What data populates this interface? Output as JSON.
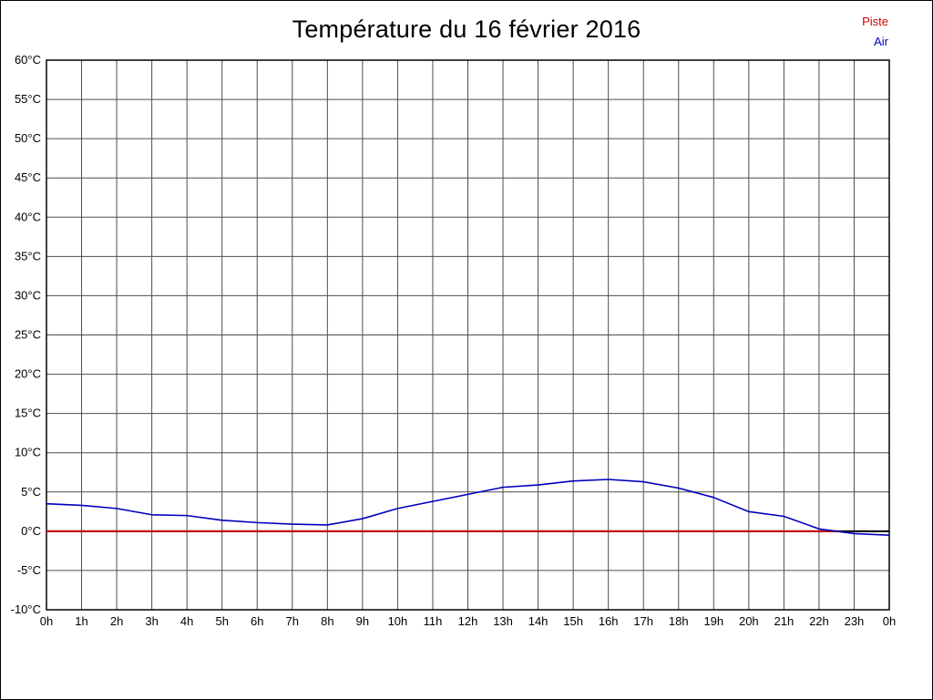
{
  "page": {
    "background": "#ffffff",
    "border_color": "#000000"
  },
  "title": "Température du 16 février 2016",
  "legend": {
    "items": [
      {
        "label": "Piste",
        "color": "#cc0000"
      },
      {
        "label": "Air",
        "color": "#0000bb"
      }
    ]
  },
  "chart_data": {
    "type": "line",
    "title": "Température du 16 février 2016",
    "x_labels": [
      "0h",
      "1h",
      "2h",
      "3h",
      "4h",
      "5h",
      "6h",
      "7h",
      "8h",
      "9h",
      "10h",
      "11h",
      "12h",
      "13h",
      "14h",
      "15h",
      "16h",
      "17h",
      "18h",
      "19h",
      "20h",
      "21h",
      "22h",
      "23h",
      "0h"
    ],
    "x_axis_unit": "hour",
    "ylim": [
      -10,
      60
    ],
    "y_tick_step": 5,
    "y_unit": "°C",
    "grid": true,
    "grid_color": "#4d4d4d",
    "zero_line": {
      "show": true,
      "color": "#000000",
      "width": 2
    },
    "series": [
      {
        "name": "Piste",
        "color": "#cc0000",
        "width": 2,
        "x_hours": [
          0,
          1,
          2,
          3,
          4,
          5,
          6,
          7,
          8,
          9,
          10,
          11,
          12,
          13,
          14,
          15,
          16,
          17,
          18,
          19,
          20,
          21,
          22,
          22.5
        ],
        "values": [
          0,
          0,
          0,
          0,
          0,
          0,
          0,
          0,
          0,
          0,
          0,
          0,
          0,
          0,
          0,
          0,
          0,
          0,
          0,
          0,
          0,
          0,
          0,
          0
        ]
      },
      {
        "name": "Air",
        "color": "#0000bb",
        "width": 1.6,
        "x_hours": [
          0,
          1,
          2,
          3,
          4,
          5,
          6,
          7,
          8,
          9,
          10,
          11,
          12,
          13,
          14,
          15,
          16,
          17,
          18,
          19,
          20,
          21,
          22,
          23,
          24
        ],
        "values": [
          3.5,
          3.3,
          2.9,
          2.1,
          2.0,
          1.4,
          1.1,
          0.9,
          0.8,
          1.6,
          2.9,
          3.8,
          4.7,
          5.6,
          5.9,
          6.4,
          6.6,
          6.3,
          5.5,
          4.3,
          2.5,
          1.9,
          0.3,
          -0.3,
          -0.5
        ]
      }
    ]
  }
}
